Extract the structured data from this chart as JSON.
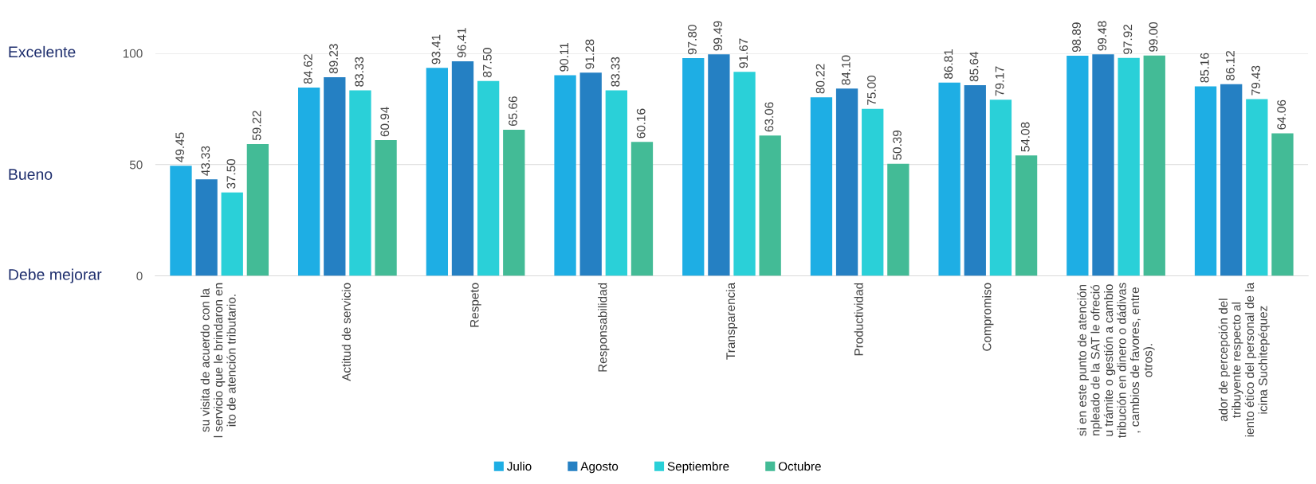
{
  "chart_data": {
    "type": "bar",
    "categories": [
      "su visita de acuerdo con la\nl servicio que le brindaron en\nito de atención tributario.",
      "Actitud de servicio",
      "Respeto",
      "Responsabilidad",
      "Transparencia",
      "Productividad",
      "Compromiso",
      "si en este punto de atención\nnpleado de la SAT le ofreció\nu trámite o gestión a cambio\ntribución en dinero o dádivas\n, cambios de favores, entre\notros).",
      "ador de percepción del\ntribuyente respecto al\niento ético del personal de la\nicina Suchitepéquez"
    ],
    "series": [
      {
        "name": "Julio",
        "color": "#1eaee4",
        "values": [
          49.45,
          84.62,
          93.41,
          90.11,
          97.8,
          80.22,
          86.81,
          98.89,
          85.16
        ]
      },
      {
        "name": "Agosto",
        "color": "#2580c3",
        "values": [
          43.33,
          89.23,
          96.41,
          91.28,
          99.49,
          84.1,
          85.64,
          99.48,
          86.12
        ]
      },
      {
        "name": "Septiembre",
        "color": "#2ad0d8",
        "values": [
          37.5,
          83.33,
          87.5,
          83.33,
          91.67,
          75.0,
          79.17,
          97.92,
          79.43
        ]
      },
      {
        "name": "Octubre",
        "color": "#43bb96",
        "values": [
          59.22,
          60.94,
          65.66,
          60.16,
          63.06,
          50.39,
          54.08,
          99.0,
          64.06
        ]
      }
    ],
    "value_labels": [
      [
        "49.45",
        "84.62",
        "93.41",
        "90.11",
        "97.80",
        "80.22",
        "86.81",
        "98.89",
        "85.16"
      ],
      [
        "43.33",
        "89.23",
        "96.41",
        "91.28",
        "99.49",
        "84.10",
        "85.64",
        "99.48",
        "86.12"
      ],
      [
        "37.50",
        "83.33",
        "87.50",
        "83.33",
        "91.67",
        "75.00",
        "79.17",
        "97.92",
        "79.43"
      ],
      [
        "59.22",
        "60.94",
        "65.66",
        "60.16",
        "63.06",
        "50.39",
        "54.08",
        "99.00",
        "64.06"
      ]
    ],
    "ylim": [
      0,
      100
    ],
    "yticks": [
      0,
      50,
      100
    ],
    "annotations": [
      "Excelente",
      "Bueno",
      "Debe mejorar"
    ],
    "grid": "y",
    "legend": "bottom"
  }
}
